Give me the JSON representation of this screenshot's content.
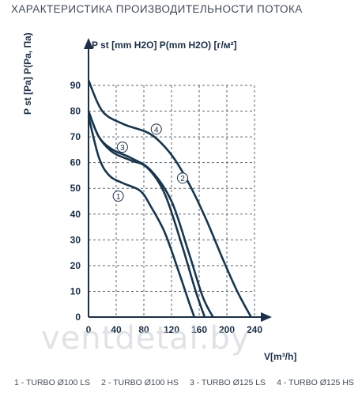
{
  "title": "ХАРАКТЕРИСТИКА ПРОИЗВОДИТЕЛЬНОСТИ ПОТОКА",
  "watermark": "ventdetal.by",
  "chart_data": {
    "type": "line",
    "ylabel": "P st [Pa] P(Pa, Па)",
    "ylabel_top": "P st [mm H2O] P(mm H2O) [г/м²]",
    "xlabel": "V[m³/h]",
    "xlim": [
      0,
      240
    ],
    "ylim": [
      0,
      90
    ],
    "x_ticks": [
      "0",
      "40",
      "80",
      "120",
      "160",
      "200",
      "240"
    ],
    "y_ticks": [
      "0",
      "10",
      "20",
      "30",
      "40",
      "50",
      "60",
      "70",
      "80",
      "90"
    ],
    "grid": true,
    "series": [
      {
        "name": "1",
        "label": "1 - TURBO Ø100 LS",
        "points": [
          [
            0,
            78
          ],
          [
            15,
            62
          ],
          [
            30,
            55
          ],
          [
            50,
            52
          ],
          [
            75,
            49
          ],
          [
            90,
            43
          ],
          [
            110,
            33
          ],
          [
            130,
            18
          ],
          [
            145,
            6
          ],
          [
            153,
            0
          ]
        ]
      },
      {
        "name": "2",
        "label": "2 - TURBO Ø100 HS",
        "points": [
          [
            0,
            80
          ],
          [
            15,
            70
          ],
          [
            35,
            64
          ],
          [
            60,
            61
          ],
          [
            85,
            58
          ],
          [
            110,
            48
          ],
          [
            135,
            28
          ],
          [
            155,
            10
          ],
          [
            168,
            0
          ]
        ]
      },
      {
        "name": "3",
        "label": "3 - TURBO Ø125 LS",
        "points": [
          [
            0,
            80
          ],
          [
            15,
            70
          ],
          [
            35,
            65
          ],
          [
            60,
            62
          ],
          [
            90,
            57
          ],
          [
            120,
            45
          ],
          [
            145,
            25
          ],
          [
            165,
            8
          ],
          [
            180,
            0
          ]
        ]
      },
      {
        "name": "4",
        "label": "4 - TURBO Ø125 HS",
        "points": [
          [
            0,
            92
          ],
          [
            20,
            80
          ],
          [
            50,
            75
          ],
          [
            90,
            71
          ],
          [
            120,
            63
          ],
          [
            145,
            52
          ],
          [
            170,
            38
          ],
          [
            195,
            22
          ],
          [
            215,
            10
          ],
          [
            235,
            0
          ]
        ]
      }
    ],
    "line_color": "#16364f"
  }
}
